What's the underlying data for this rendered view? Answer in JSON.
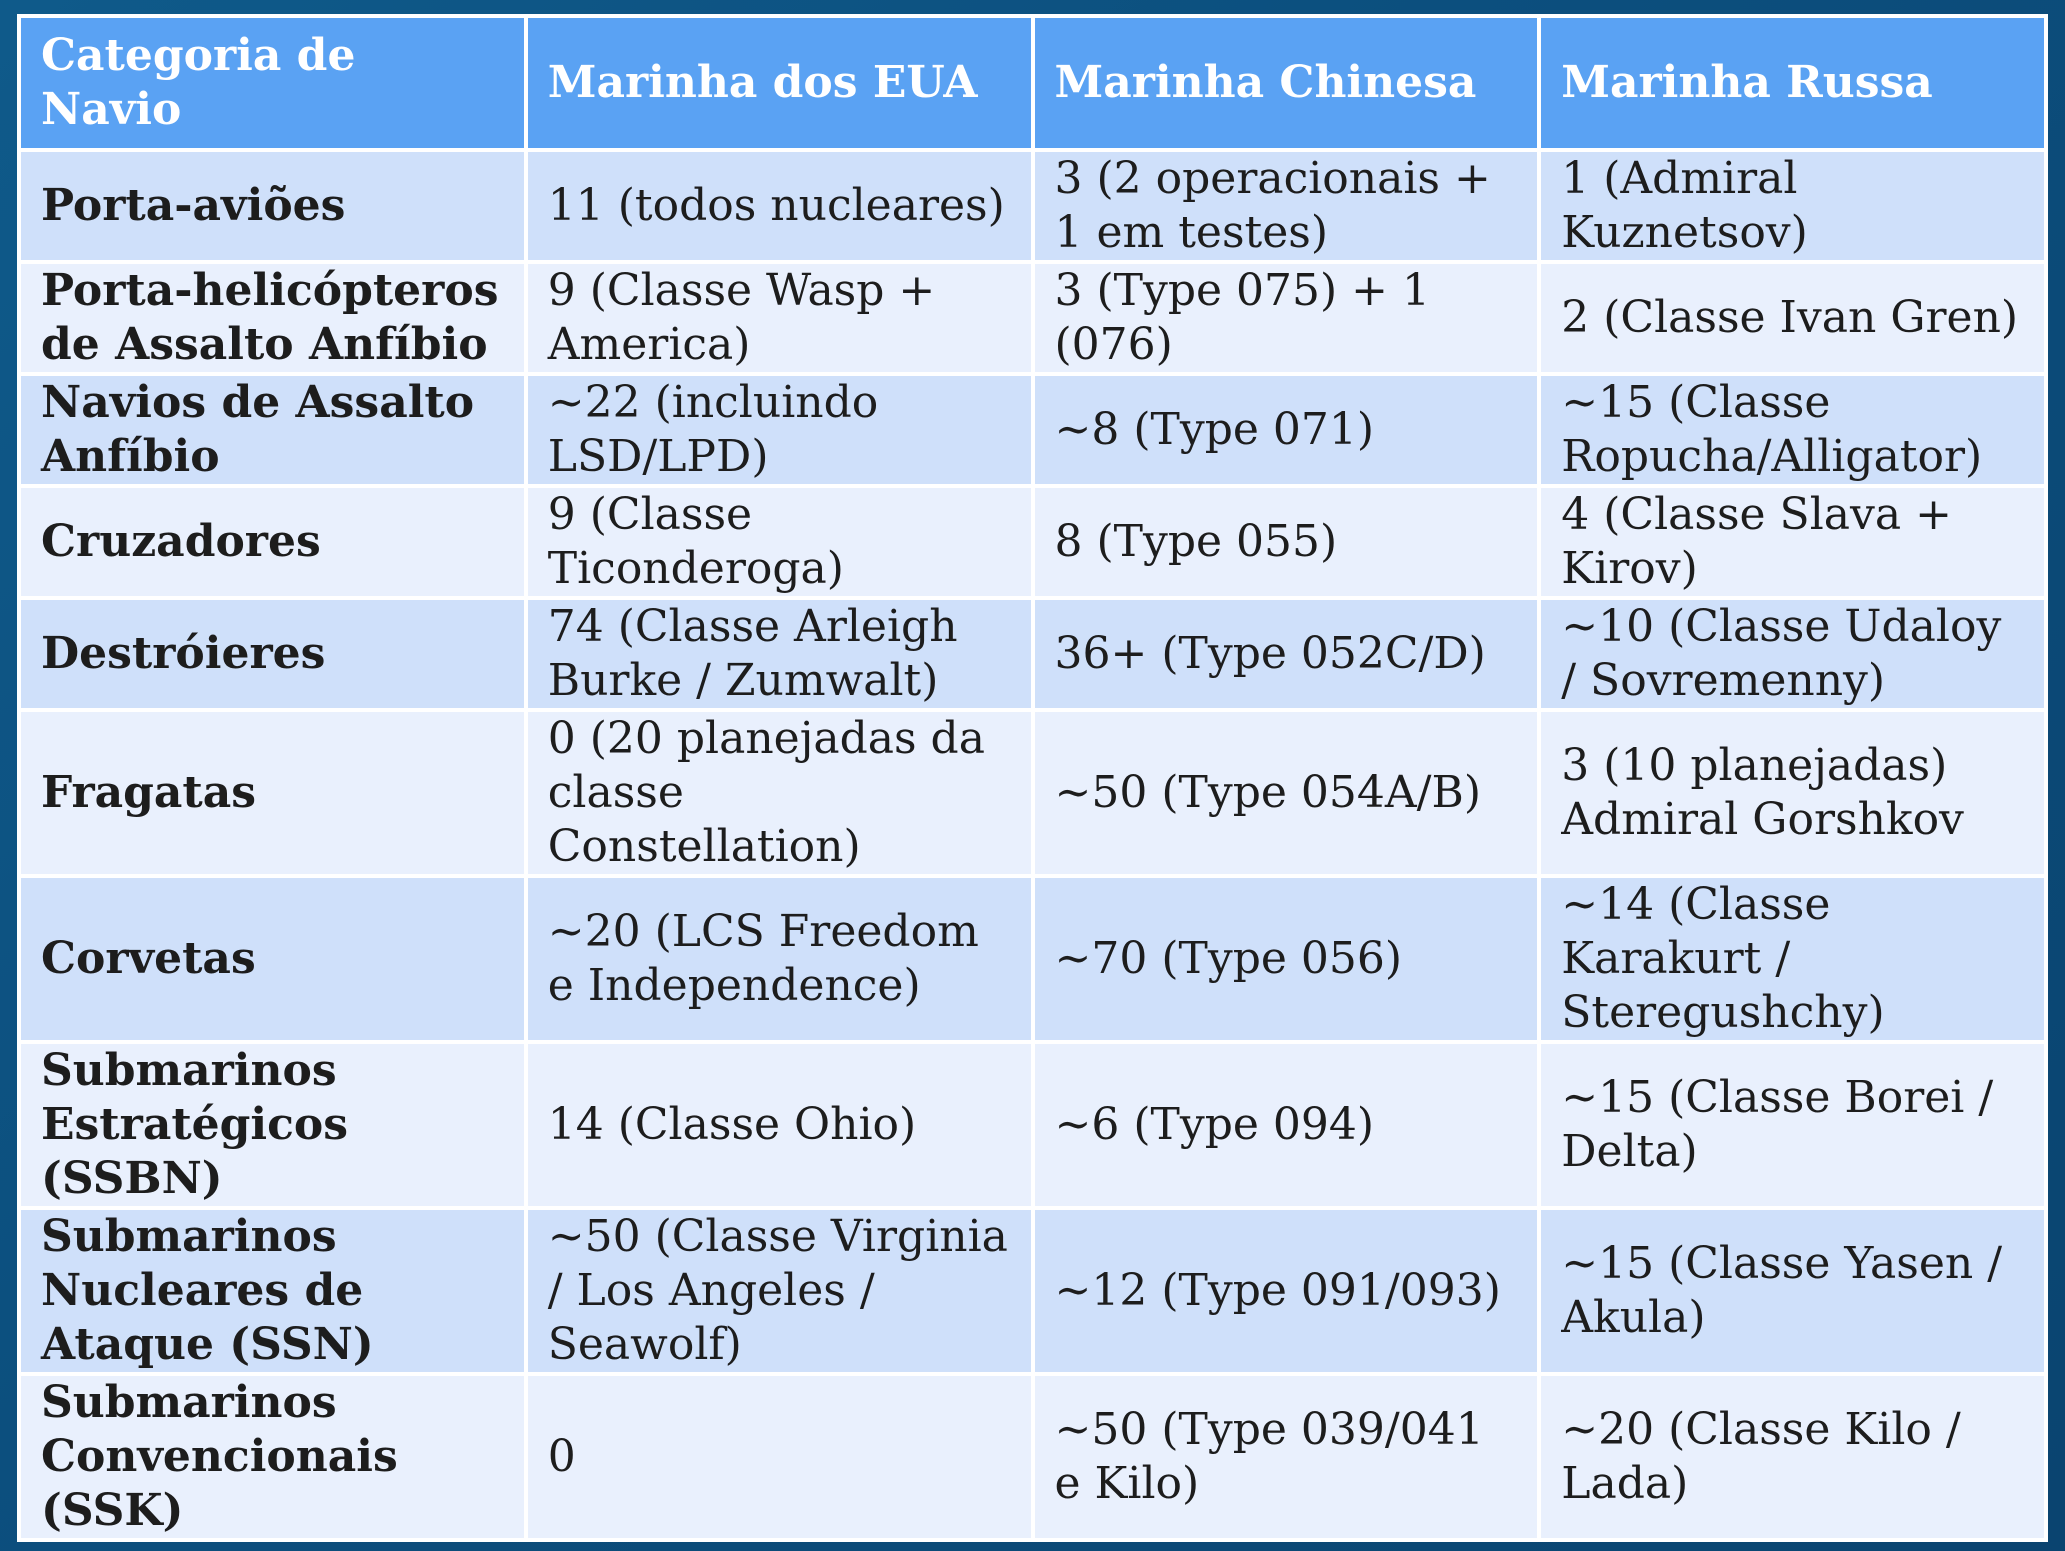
{
  "table": {
    "headers": [
      "Categoria de Navio",
      "Marinha dos EUA",
      "Marinha Chinesa",
      "Marinha Russa"
    ],
    "rows": [
      [
        "Porta-aviões",
        "11 (todos nucleares)",
        "3 (2 operacionais + 1 em testes)",
        "1 (Admiral Kuznetsov)"
      ],
      [
        "Porta-helicópteros de Assalto Anfíbio",
        "9 (Classe Wasp + America)",
        "3 (Type 075) + 1 (076)",
        "2 (Classe Ivan Gren)"
      ],
      [
        "Navios de Assalto Anfíbio",
        "~22 (incluindo LSD/LPD)",
        "~8 (Type 071)",
        "~15 (Classe Ropucha/Alligator)"
      ],
      [
        "Cruzadores",
        "9 (Classe Ticonderoga)",
        "8 (Type 055)",
        "4 (Classe Slava + Kirov)"
      ],
      [
        "Destróieres",
        "74 (Classe Arleigh Burke / Zumwalt)",
        "36+ (Type 052C/D)",
        "~10 (Classe Udaloy / Sovremenny)"
      ],
      [
        "Fragatas",
        "0 (20 planejadas da classe Constellation)",
        "~50 (Type 054A/B)",
        "3 (10 planejadas) Admiral Gorshkov"
      ],
      [
        "Corvetas",
        "~20 (LCS Freedom e Independence)",
        "~70 (Type 056)",
        "~14 (Classe Karakurt / Steregushchy)"
      ],
      [
        "Submarinos Estratégicos (SSBN)",
        "14 (Classe Ohio)",
        "~6 (Type 094)",
        "~15 (Classe Borei / Delta)"
      ],
      [
        "Submarinos Nucleares de Ataque (SSN)",
        "~50 (Classe Virginia / Los Angeles / Seawolf)",
        "~12 (Type 091/093)",
        "~15 (Classe Yasen / Akula)"
      ],
      [
        "Submarinos Convencionais (SSK)",
        "0",
        "~50 (Type 039/041 e Kilo)",
        "~20 (Classe Kilo / Lada)"
      ]
    ]
  },
  "colors": {
    "header_bg": "#5aa2f3",
    "row_odd_bg": "#cfe0fa",
    "row_even_bg": "#e9f0fd",
    "page_bg": "#0c4f7e"
  }
}
